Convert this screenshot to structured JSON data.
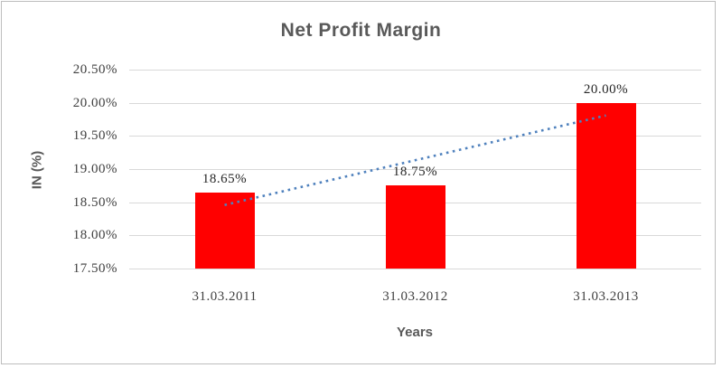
{
  "chart_data": {
    "type": "bar",
    "title": "Net Profit Margin",
    "categories": [
      "31.03.2011",
      "31.03.2012",
      "31.03.2013"
    ],
    "values": [
      18.65,
      18.75,
      20.0
    ],
    "data_labels": [
      "18.65%",
      "18.75%",
      "20.00%"
    ],
    "xlabel": "Years",
    "ylabel": "IN (%)",
    "ylim": [
      17.5,
      20.5
    ],
    "ytick_step": 0.5,
    "ytick_labels": [
      "17.50%",
      "18.00%",
      "18.50%",
      "19.00%",
      "19.50%",
      "20.00%",
      "20.50%"
    ],
    "grid": true,
    "legend": "none",
    "bar_color": "#ff0000",
    "gridline_color": "#d9d9d9",
    "title_color": "#595959",
    "label_color": "#262626",
    "trendline": {
      "type": "linear",
      "style": "dotted",
      "color": "#4f81bd"
    }
  }
}
